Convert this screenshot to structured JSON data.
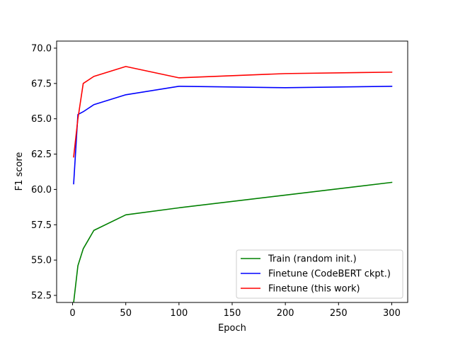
{
  "chart_data": {
    "type": "line",
    "title": "",
    "xlabel": "Epoch",
    "ylabel": "F1 score",
    "xlim": [
      -15,
      315
    ],
    "ylim": [
      52.0,
      70.5
    ],
    "x_ticks": [
      0,
      50,
      100,
      150,
      200,
      250,
      300
    ],
    "y_ticks": [
      52.5,
      55.0,
      57.5,
      60.0,
      62.5,
      65.0,
      67.5,
      70.0
    ],
    "y_tick_labels": [
      "52.5",
      "55.0",
      "57.5",
      "60.0",
      "62.5",
      "65.0",
      "67.5",
      "70.0"
    ],
    "grid": false,
    "legend_position": "lower-right",
    "series": [
      {
        "name": "Train (random init.)",
        "color": "#008000",
        "x": [
          1,
          5,
          10,
          20,
          50,
          100,
          200,
          300
        ],
        "y": [
          52.0,
          54.6,
          55.8,
          57.1,
          58.2,
          58.7,
          59.6,
          60.5
        ]
      },
      {
        "name": "Finetune (CodeBERT ckpt.)",
        "color": "#0000ff",
        "x": [
          1,
          5,
          10,
          20,
          50,
          100,
          200,
          300
        ],
        "y": [
          60.4,
          65.3,
          65.5,
          66.0,
          66.7,
          67.3,
          67.2,
          67.3
        ]
      },
      {
        "name": "Finetune (this work)",
        "color": "#ff0000",
        "x": [
          1,
          5,
          10,
          20,
          50,
          100,
          200,
          300
        ],
        "y": [
          62.3,
          65.0,
          67.5,
          68.0,
          68.7,
          67.9,
          68.2,
          68.3
        ]
      }
    ]
  }
}
